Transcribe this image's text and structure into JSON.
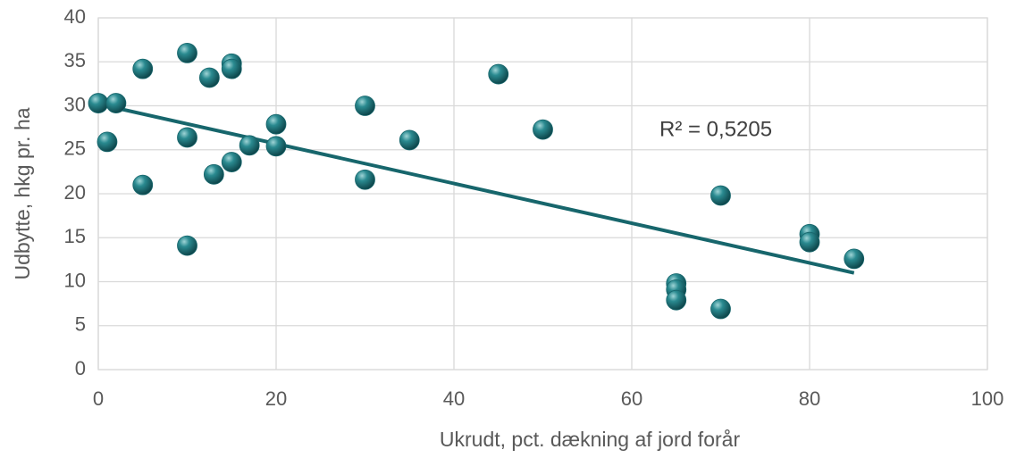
{
  "chart_data": {
    "type": "scatter",
    "x_label": "Ukrudt, pct. dækning af jord forår",
    "y_label": "Udbytte, hkg pr. ha",
    "annotation": "R² = 0,5205",
    "series": [
      {
        "color": "#17666c",
        "x": [
          0,
          1,
          2,
          5,
          5,
          10,
          10,
          10,
          12.5,
          13,
          15,
          15,
          15,
          17,
          20,
          20,
          30,
          30,
          35,
          45,
          50,
          65,
          65,
          65,
          70,
          70,
          80,
          80,
          85
        ],
        "values": [
          30.3,
          25.9,
          30.3,
          34.2,
          21,
          36,
          26.4,
          14.1,
          33.2,
          22.2,
          34.8,
          34.2,
          23.6,
          25.5,
          27.9,
          25.4,
          30,
          21.6,
          26.1,
          33.6,
          27.3,
          9.8,
          9.1,
          7.9,
          19.8,
          6.9,
          15.4,
          14.5,
          12.6
        ]
      }
    ],
    "trendline": {
      "color": "#17666c",
      "x": [
        0,
        85
      ],
      "values": [
        30.2,
        11
      ]
    },
    "xlim": [
      0,
      100
    ],
    "xticks": [
      0,
      20,
      40,
      60,
      80,
      100
    ],
    "ylim": [
      0,
      40
    ],
    "yticks": [
      0,
      5,
      10,
      15,
      20,
      25,
      30,
      35,
      40
    ],
    "grid": true
  }
}
